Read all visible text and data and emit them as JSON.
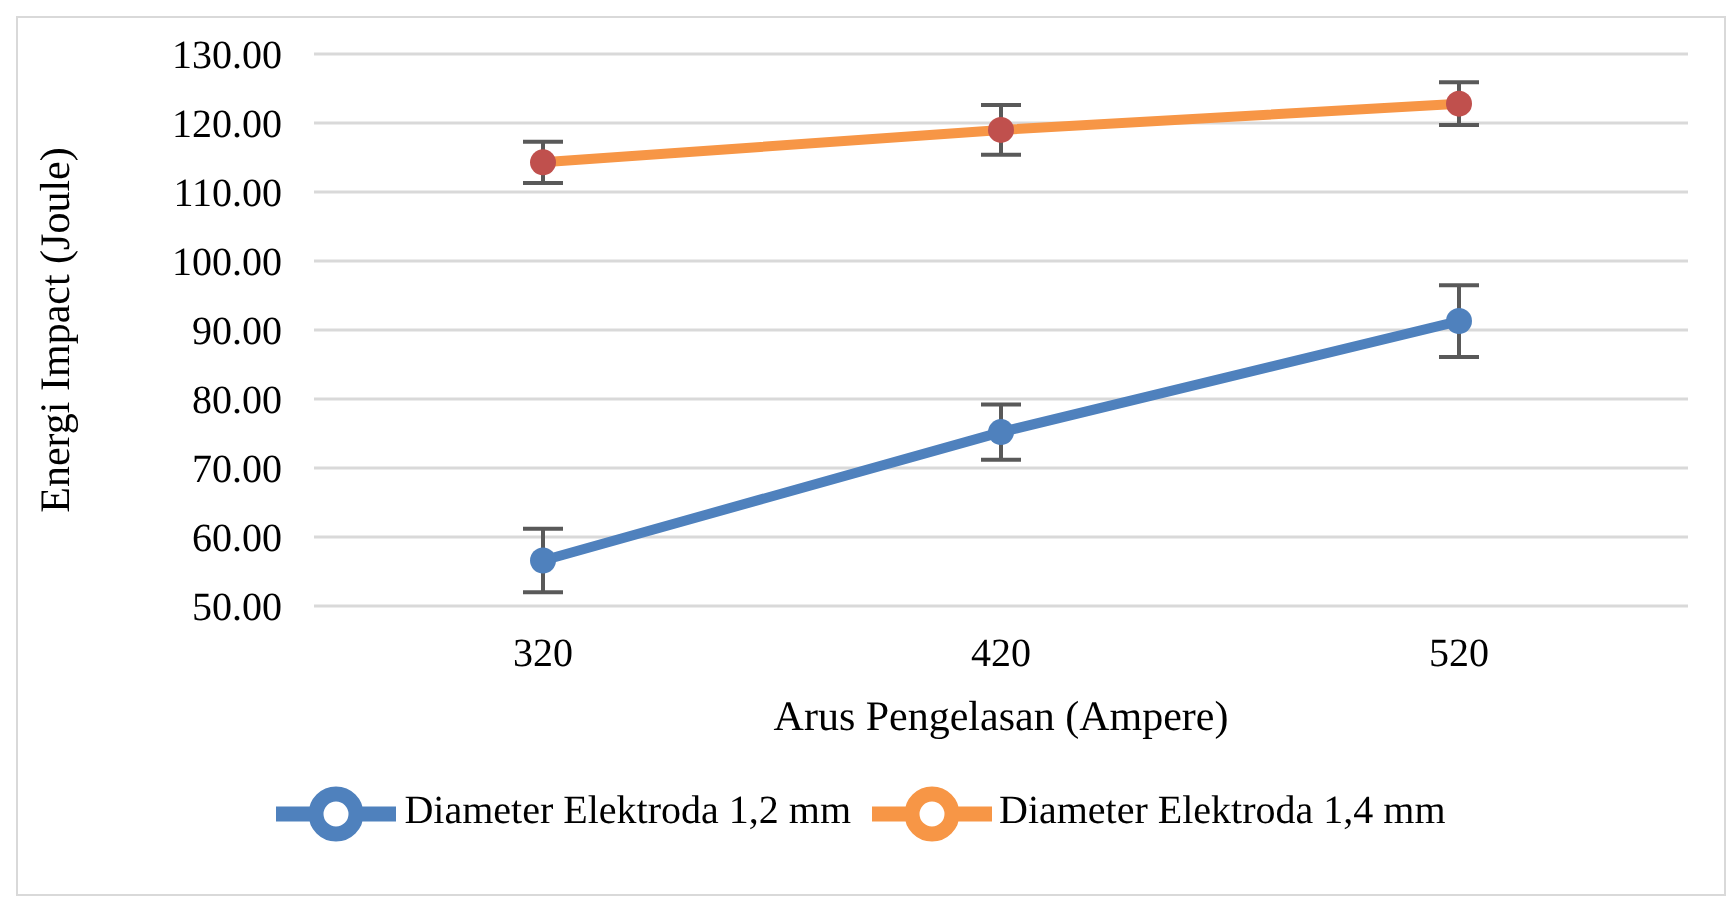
{
  "chart_data": {
    "type": "line",
    "xlabel": "Arus Pengelasan (Ampere)",
    "ylabel": "Energi Impact (Joule)",
    "categories": [
      "320",
      "420",
      "520"
    ],
    "series": [
      {
        "name": "Diameter Elektroda 1,2 mm",
        "color": "#4f81bd",
        "values": [
          56.6,
          75.2,
          91.3
        ],
        "errors": [
          4.6,
          4.0,
          5.2
        ]
      },
      {
        "name": "Diameter Elektroda 1,4 mm",
        "color": "#f79646",
        "colors": [
          "#c0504d",
          "#c0504d",
          "#c0504d"
        ],
        "values": [
          114.3,
          119.0,
          122.8
        ],
        "errors": [
          3.0,
          3.6,
          3.1
        ]
      }
    ],
    "ylim": [
      50,
      130
    ],
    "yticks": [
      {
        "value": 50,
        "label": "50.00"
      },
      {
        "value": 60,
        "label": "60.00"
      },
      {
        "value": 70,
        "label": "70.00"
      },
      {
        "value": 80,
        "label": "80.00"
      },
      {
        "value": 90,
        "label": "90.00"
      },
      {
        "value": 100,
        "label": "100.00"
      },
      {
        "value": 110,
        "label": "110.00"
      },
      {
        "value": 120,
        "label": "120.00"
      },
      {
        "value": 130,
        "label": "130.00"
      }
    ],
    "grid": "y",
    "legend": "bottom",
    "marker": "circle",
    "line_style": "solid"
  }
}
